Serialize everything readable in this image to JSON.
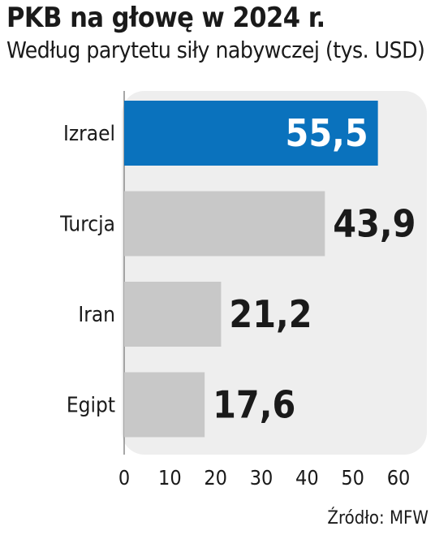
{
  "chart_data": {
    "type": "bar",
    "orientation": "horizontal",
    "title": "PKB na głowę w 2024 r.",
    "subtitle": "Według parytetu siły nabywczej (tys. USD)",
    "categories": [
      "Izrael",
      "Turcja",
      "Iran",
      "Egipt"
    ],
    "values": [
      55.5,
      43.9,
      21.2,
      17.6
    ],
    "value_labels": [
      "55,5",
      "43,9",
      "21,2",
      "17,6"
    ],
    "highlight_index": 0,
    "xlim": [
      0,
      60
    ],
    "xticks": [
      "0",
      "10",
      "20",
      "30",
      "40",
      "50",
      "60"
    ],
    "grid": false,
    "source": "Źródło: MFW",
    "colors": {
      "highlight": "#0a72bd",
      "bar": "#c8c8c8",
      "panel": "#eeeeee",
      "text": "#1a1a1a"
    }
  }
}
